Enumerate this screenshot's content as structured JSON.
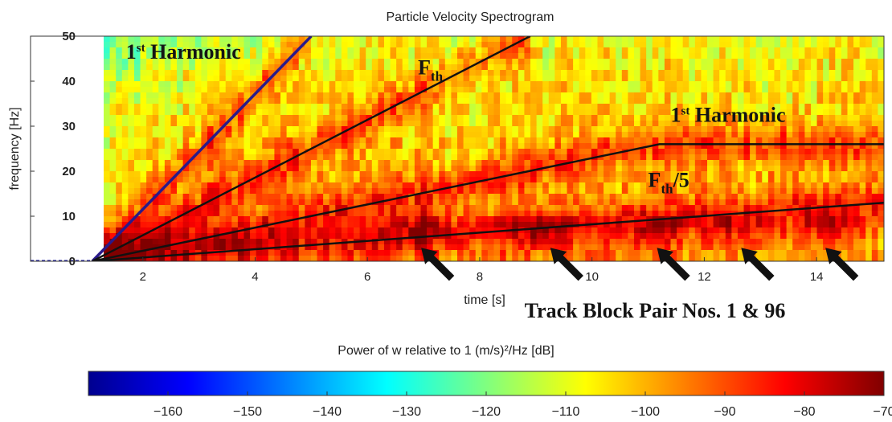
{
  "chart_data": {
    "type": "heatmap",
    "title": "Particle Velocity Spectrogram",
    "xlabel": "time [s]",
    "ylabel": "frequency [Hz]",
    "xlim": [
      0,
      15.2
    ],
    "ylim": [
      0,
      50
    ],
    "x_ticks": [
      "2",
      "4",
      "6",
      "8",
      "10",
      "12",
      "14"
    ],
    "y_ticks": [
      "0",
      "10",
      "20",
      "30",
      "40",
      "50"
    ],
    "lines": [
      {
        "name": "1st Harmonic (steep)",
        "color": "#2a1a8a",
        "points": [
          [
            1.1,
            0
          ],
          [
            5.0,
            50
          ]
        ]
      },
      {
        "name": "Fth",
        "color": "#111111",
        "points": [
          [
            1.1,
            0
          ],
          [
            8.9,
            50
          ]
        ]
      },
      {
        "name": "1st Harmonic",
        "color": "#111111",
        "points": [
          [
            1.1,
            0
          ],
          [
            11.2,
            26
          ],
          [
            15.2,
            26
          ]
        ]
      },
      {
        "name": "Fth/5",
        "color": "#111111",
        "points": [
          [
            1.1,
            0
          ],
          [
            15.2,
            13
          ]
        ]
      }
    ],
    "annotations": [
      {
        "sup": "st",
        "pre": "1",
        "post": " Harmonic",
        "at": [
          1.7,
          45
        ]
      },
      {
        "text": "F",
        "sub": "th",
        "at": [
          6.9,
          41.5
        ]
      },
      {
        "sup": "st",
        "pre": "1",
        "post": " Harmonic",
        "at": [
          11.4,
          31
        ]
      },
      {
        "text": "F",
        "sub": "th",
        "post": "/5",
        "at": [
          11.0,
          16.5
        ]
      }
    ],
    "arrow_targets_s": [
      6.9,
      9.2,
      11.1,
      12.6,
      14.1
    ],
    "track_label": "Track Block Pair Nos. 1 & 96",
    "colorbar": {
      "label": "Power of w relative to 1 (m/s)²/Hz [dB]",
      "range": [
        -170,
        -70
      ],
      "ticks": [
        "-160",
        "-150",
        "-140",
        "-130",
        "-120",
        "-110",
        "-100",
        "-90",
        "-80",
        "-70"
      ],
      "colormap": "jet"
    },
    "grid": false
  }
}
